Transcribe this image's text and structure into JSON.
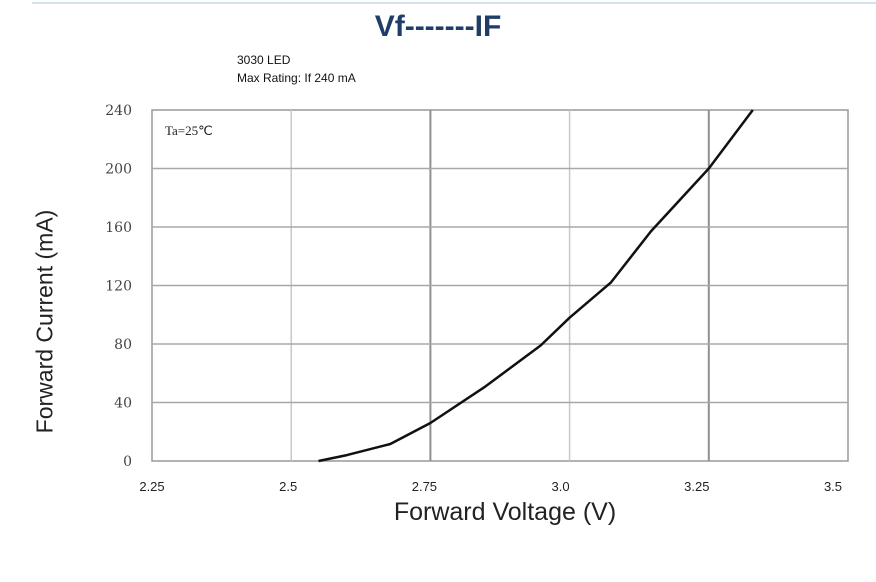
{
  "chart_data": {
    "type": "line",
    "title": "Vf-------IF",
    "subtitle": [
      "3030 LED",
      "Max Rating: If 240 mA"
    ],
    "annotation": "Ta=25℃",
    "xlabel": "Forward Voltage (V)",
    "ylabel": "Forward Current (mA)",
    "xlim": [
      2.25,
      3.5
    ],
    "ylim": [
      0,
      240
    ],
    "xticks": [
      "2.25",
      "2.5",
      "2.75",
      "3.0",
      "3.25",
      "3.5"
    ],
    "yticks": [
      "0",
      "40",
      "80",
      "120",
      "160",
      "200",
      "240"
    ],
    "grid": true,
    "series": [
      {
        "name": "IF",
        "x": [
          2.549,
          2.6,
          2.678,
          2.75,
          2.849,
          2.948,
          3.0,
          3.074,
          3.146,
          3.25,
          3.329
        ],
        "y": [
          0,
          4,
          11.6,
          26,
          51,
          79,
          98,
          122,
          157,
          200,
          240
        ]
      }
    ]
  }
}
